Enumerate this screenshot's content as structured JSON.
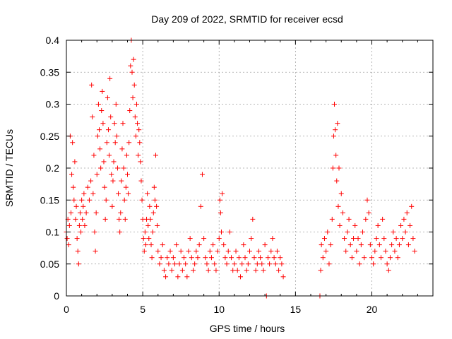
{
  "chart_data": {
    "type": "scatter",
    "title": "Day 209 of 2022, SRMTID for receiver ecsd",
    "xlabel": "GPS time / hours",
    "ylabel": "SRMTID / TECUs",
    "xlim": [
      0,
      24
    ],
    "ylim": [
      0,
      0.4
    ],
    "xticks": [
      0,
      5,
      10,
      15,
      20
    ],
    "xtick_labels": [
      "0",
      "5",
      "10",
      "15",
      "20"
    ],
    "yticks": [
      0,
      0.05,
      0.1,
      0.15,
      0.2,
      0.25,
      0.3,
      0.35,
      0.4
    ],
    "ytick_labels": [
      "0",
      "0.05",
      "0.1",
      "0.15",
      "0.2",
      "0.25",
      "0.3",
      "0.35",
      "0.4"
    ],
    "grid": true,
    "marker": "+",
    "color": "#ff0000",
    "series": [
      {
        "name": "SRMTID",
        "points": [
          [
            0.0,
            0.1
          ],
          [
            0.05,
            0.09
          ],
          [
            0.1,
            0.12
          ],
          [
            0.15,
            0.08
          ],
          [
            0.2,
            0.11
          ],
          [
            0.25,
            0.25
          ],
          [
            0.3,
            0.13
          ],
          [
            0.35,
            0.19
          ],
          [
            0.4,
            0.24
          ],
          [
            0.45,
            0.17
          ],
          [
            0.5,
            0.15
          ],
          [
            0.55,
            0.21
          ],
          [
            0.6,
            0.12
          ],
          [
            0.65,
            0.14
          ],
          [
            0.7,
            0.09
          ],
          [
            0.75,
            0.07
          ],
          [
            0.8,
            0.05
          ],
          [
            0.85,
            0.11
          ],
          [
            0.9,
            0.13
          ],
          [
            0.95,
            0.1
          ],
          [
            1.0,
            0.15
          ],
          [
            1.05,
            0.12
          ],
          [
            1.1,
            0.14
          ],
          [
            1.15,
            0.16
          ],
          [
            1.2,
            0.11
          ],
          [
            1.3,
            0.13
          ],
          [
            1.4,
            0.17
          ],
          [
            1.5,
            0.15
          ],
          [
            1.6,
            0.18
          ],
          [
            1.65,
            0.33
          ],
          [
            1.7,
            0.28
          ],
          [
            1.75,
            0.16
          ],
          [
            1.8,
            0.22
          ],
          [
            1.85,
            0.1
          ],
          [
            1.9,
            0.07
          ],
          [
            1.95,
            0.13
          ],
          [
            2.0,
            0.19
          ],
          [
            2.05,
            0.25
          ],
          [
            2.1,
            0.3
          ],
          [
            2.15,
            0.26
          ],
          [
            2.2,
            0.23
          ],
          [
            2.25,
            0.2
          ],
          [
            2.3,
            0.29
          ],
          [
            2.35,
            0.32
          ],
          [
            2.4,
            0.27
          ],
          [
            2.45,
            0.21
          ],
          [
            2.5,
            0.17
          ],
          [
            2.55,
            0.12
          ],
          [
            2.6,
            0.15
          ],
          [
            2.65,
            0.24
          ],
          [
            2.7,
            0.31
          ],
          [
            2.75,
            0.26
          ],
          [
            2.8,
            0.22
          ],
          [
            2.85,
            0.34
          ],
          [
            2.9,
            0.28
          ],
          [
            2.95,
            0.19
          ],
          [
            3.0,
            0.14
          ],
          [
            3.05,
            0.18
          ],
          [
            3.1,
            0.21
          ],
          [
            3.15,
            0.27
          ],
          [
            3.2,
            0.24
          ],
          [
            3.25,
            0.3
          ],
          [
            3.3,
            0.25
          ],
          [
            3.35,
            0.2
          ],
          [
            3.4,
            0.16
          ],
          [
            3.45,
            0.12
          ],
          [
            3.5,
            0.1
          ],
          [
            3.55,
            0.13
          ],
          [
            3.6,
            0.18
          ],
          [
            3.65,
            0.23
          ],
          [
            3.7,
            0.27
          ],
          [
            3.75,
            0.2
          ],
          [
            3.8,
            0.15
          ],
          [
            3.85,
            0.12
          ],
          [
            3.9,
            0.17
          ],
          [
            3.95,
            0.22
          ],
          [
            4.0,
            0.19
          ],
          [
            4.05,
            0.16
          ],
          [
            4.1,
            0.24
          ],
          [
            4.15,
            0.29
          ],
          [
            4.2,
            0.36
          ],
          [
            4.25,
            0.4
          ],
          [
            4.3,
            0.35
          ],
          [
            4.35,
            0.31
          ],
          [
            4.4,
            0.37
          ],
          [
            4.45,
            0.33
          ],
          [
            4.5,
            0.28
          ],
          [
            4.55,
            0.25
          ],
          [
            4.6,
            0.3
          ],
          [
            4.65,
            0.27
          ],
          [
            4.7,
            0.22
          ],
          [
            4.75,
            0.26
          ],
          [
            4.8,
            0.24
          ],
          [
            4.85,
            0.21
          ],
          [
            4.9,
            0.18
          ],
          [
            4.95,
            0.15
          ],
          [
            5.0,
            0.12
          ],
          [
            5.05,
            0.09
          ],
          [
            5.1,
            0.07
          ],
          [
            5.15,
            0.1
          ],
          [
            5.2,
            0.08
          ],
          [
            5.25,
            0.12
          ],
          [
            5.3,
            0.16
          ],
          [
            5.35,
            0.11
          ],
          [
            5.4,
            0.09
          ],
          [
            5.45,
            0.14
          ],
          [
            5.5,
            0.12
          ],
          [
            5.55,
            0.08
          ],
          [
            5.6,
            0.06
          ],
          [
            5.65,
            0.1
          ],
          [
            5.7,
            0.13
          ],
          [
            5.75,
            0.17
          ],
          [
            5.8,
            0.15
          ],
          [
            5.85,
            0.22
          ],
          [
            5.9,
            0.14
          ],
          [
            5.95,
            0.11
          ],
          [
            6.0,
            0.07
          ],
          [
            6.1,
            0.05
          ],
          [
            6.2,
            0.06
          ],
          [
            6.3,
            0.08
          ],
          [
            6.4,
            0.04
          ],
          [
            6.5,
            0.03
          ],
          [
            6.6,
            0.06
          ],
          [
            6.7,
            0.05
          ],
          [
            6.8,
            0.07
          ],
          [
            6.9,
            0.04
          ],
          [
            7.0,
            0.06
          ],
          [
            7.1,
            0.05
          ],
          [
            7.2,
            0.08
          ],
          [
            7.3,
            0.03
          ],
          [
            7.4,
            0.05
          ],
          [
            7.5,
            0.07
          ],
          [
            7.6,
            0.04
          ],
          [
            7.7,
            0.06
          ],
          [
            7.8,
            0.05
          ],
          [
            7.9,
            0.03
          ],
          [
            8.0,
            0.07
          ],
          [
            8.1,
            0.09
          ],
          [
            8.2,
            0.06
          ],
          [
            8.3,
            0.04
          ],
          [
            8.4,
            0.05
          ],
          [
            8.5,
            0.07
          ],
          [
            8.6,
            0.06
          ],
          [
            8.7,
            0.08
          ],
          [
            8.8,
            0.14
          ],
          [
            8.9,
            0.19
          ],
          [
            9.0,
            0.09
          ],
          [
            9.1,
            0.06
          ],
          [
            9.2,
            0.05
          ],
          [
            9.3,
            0.04
          ],
          [
            9.4,
            0.07
          ],
          [
            9.5,
            0.06
          ],
          [
            9.6,
            0.08
          ],
          [
            9.7,
            0.05
          ],
          [
            9.8,
            0.04
          ],
          [
            9.9,
            0.07
          ],
          [
            10.0,
            0.09
          ],
          [
            10.05,
            0.15
          ],
          [
            10.1,
            0.13
          ],
          [
            10.15,
            0.1
          ],
          [
            10.2,
            0.16
          ],
          [
            10.3,
            0.08
          ],
          [
            10.4,
            0.06
          ],
          [
            10.5,
            0.05
          ],
          [
            10.6,
            0.07
          ],
          [
            10.7,
            0.1
          ],
          [
            10.8,
            0.06
          ],
          [
            10.9,
            0.04
          ],
          [
            11.0,
            0.05
          ],
          [
            11.1,
            0.07
          ],
          [
            11.2,
            0.04
          ],
          [
            11.3,
            0.06
          ],
          [
            11.4,
            0.03
          ],
          [
            11.5,
            0.05
          ],
          [
            11.6,
            0.08
          ],
          [
            11.7,
            0.06
          ],
          [
            11.8,
            0.04
          ],
          [
            11.9,
            0.05
          ],
          [
            12.0,
            0.07
          ],
          [
            12.1,
            0.09
          ],
          [
            12.2,
            0.12
          ],
          [
            12.3,
            0.06
          ],
          [
            12.4,
            0.04
          ],
          [
            12.5,
            0.05
          ],
          [
            12.6,
            0.07
          ],
          [
            12.7,
            0.06
          ],
          [
            12.8,
            0.05
          ],
          [
            12.9,
            0.04
          ],
          [
            13.0,
            0.08
          ],
          [
            13.1,
            0.0
          ],
          [
            13.2,
            0.06
          ],
          [
            13.3,
            0.05
          ],
          [
            13.4,
            0.07
          ],
          [
            13.5,
            0.09
          ],
          [
            13.6,
            0.06
          ],
          [
            13.7,
            0.05
          ],
          [
            13.8,
            0.07
          ],
          [
            13.9,
            0.04
          ],
          [
            14.0,
            0.06
          ],
          [
            14.1,
            0.05
          ],
          [
            14.2,
            0.03
          ],
          [
            16.6,
            0.0
          ],
          [
            16.65,
            0.04
          ],
          [
            16.7,
            0.08
          ],
          [
            16.8,
            0.06
          ],
          [
            16.9,
            0.09
          ],
          [
            17.0,
            0.07
          ],
          [
            17.1,
            0.1
          ],
          [
            17.2,
            0.05
          ],
          [
            17.3,
            0.08
          ],
          [
            17.4,
            0.12
          ],
          [
            17.45,
            0.2
          ],
          [
            17.5,
            0.25
          ],
          [
            17.55,
            0.3
          ],
          [
            17.6,
            0.26
          ],
          [
            17.65,
            0.22
          ],
          [
            17.7,
            0.18
          ],
          [
            17.75,
            0.27
          ],
          [
            17.8,
            0.14
          ],
          [
            17.85,
            0.2
          ],
          [
            17.9,
            0.11
          ],
          [
            18.0,
            0.16
          ],
          [
            18.1,
            0.13
          ],
          [
            18.2,
            0.09
          ],
          [
            18.3,
            0.07
          ],
          [
            18.4,
            0.1
          ],
          [
            18.5,
            0.12
          ],
          [
            18.6,
            0.08
          ],
          [
            18.7,
            0.06
          ],
          [
            18.8,
            0.09
          ],
          [
            18.9,
            0.11
          ],
          [
            19.0,
            0.07
          ],
          [
            19.1,
            0.09
          ],
          [
            19.2,
            0.05
          ],
          [
            19.3,
            0.08
          ],
          [
            19.4,
            0.1
          ],
          [
            19.5,
            0.06
          ],
          [
            19.6,
            0.12
          ],
          [
            19.7,
            0.15
          ],
          [
            19.8,
            0.13
          ],
          [
            19.9,
            0.08
          ],
          [
            20.0,
            0.06
          ],
          [
            20.1,
            0.05
          ],
          [
            20.2,
            0.07
          ],
          [
            20.3,
            0.09
          ],
          [
            20.4,
            0.11
          ],
          [
            20.5,
            0.08
          ],
          [
            20.6,
            0.06
          ],
          [
            20.7,
            0.12
          ],
          [
            20.8,
            0.09
          ],
          [
            20.9,
            0.07
          ],
          [
            21.0,
            0.05
          ],
          [
            21.1,
            0.04
          ],
          [
            21.2,
            0.06
          ],
          [
            21.3,
            0.08
          ],
          [
            21.4,
            0.1
          ],
          [
            21.5,
            0.07
          ],
          [
            21.6,
            0.09
          ],
          [
            21.7,
            0.06
          ],
          [
            21.8,
            0.08
          ],
          [
            21.9,
            0.11
          ],
          [
            22.0,
            0.09
          ],
          [
            22.1,
            0.12
          ],
          [
            22.2,
            0.1
          ],
          [
            22.3,
            0.13
          ],
          [
            22.4,
            0.08
          ],
          [
            22.5,
            0.11
          ],
          [
            22.6,
            0.14
          ],
          [
            22.7,
            0.09
          ],
          [
            22.8,
            0.07
          ]
        ]
      }
    ]
  }
}
